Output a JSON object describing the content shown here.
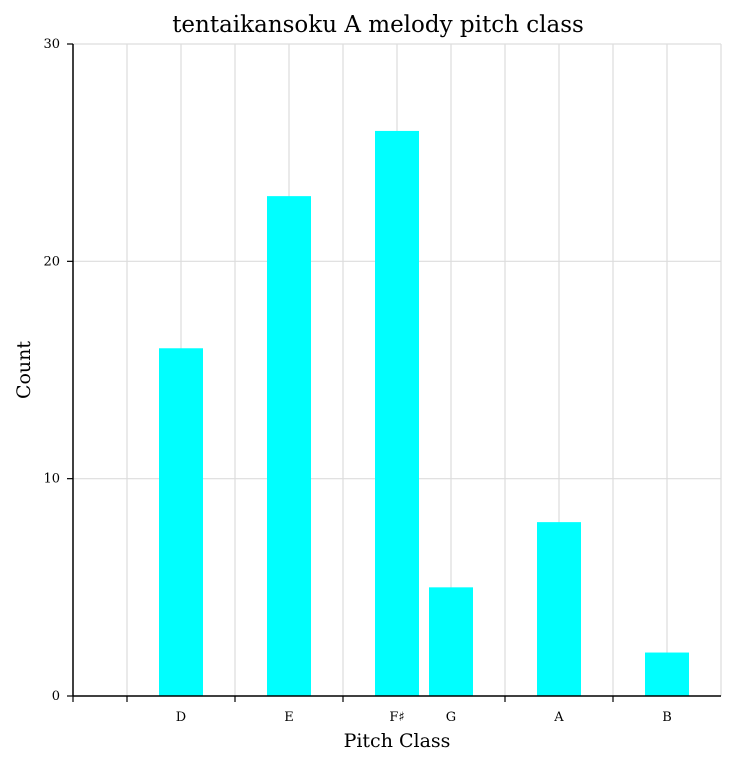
{
  "chart_data": {
    "type": "bar",
    "title": "tentaikansoku A melody pitch class",
    "xlabel": "Pitch Class",
    "ylabel": "Count",
    "categories": [
      "D",
      "E",
      "F♯",
      "G",
      "A",
      "B"
    ],
    "positions": [
      2,
      4,
      6,
      7,
      9,
      11
    ],
    "values": [
      16,
      23,
      26,
      5,
      8,
      2
    ],
    "xlim": [
      0,
      12
    ],
    "ylim": [
      0,
      30
    ],
    "yticks": [
      0,
      10,
      20,
      30
    ],
    "xticks_minor": [
      0,
      1,
      3,
      5,
      8,
      10
    ],
    "grid": true,
    "bar_color": "#00ffff",
    "grid_color": "#dddddd",
    "axis_color": "#000000"
  }
}
